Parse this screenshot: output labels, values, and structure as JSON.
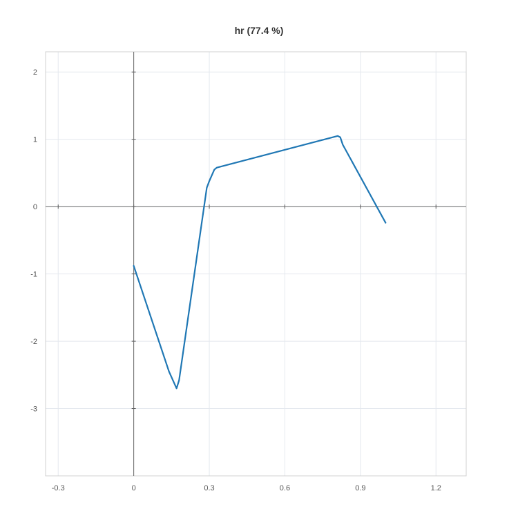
{
  "chart_data": {
    "type": "line",
    "title": "hr (77.4 %)",
    "xlabel": "",
    "ylabel": "",
    "xlim": [
      -0.35,
      1.32
    ],
    "ylim": [
      -4.0,
      2.3
    ],
    "x_ticks": [
      -0.3,
      0,
      0.3,
      0.6,
      0.9,
      1.2
    ],
    "x_tick_labels": [
      "-0.3",
      "0",
      "0.3",
      "0.6",
      "0.9",
      "1.2"
    ],
    "y_ticks": [
      2,
      1,
      0,
      -1,
      -2,
      -3
    ],
    "y_tick_labels": [
      "2",
      "1",
      "0",
      "-1",
      "-2",
      "-3"
    ],
    "grid": true,
    "line_color": "#1f77b4",
    "series": [
      {
        "x": [
          0.0,
          0.14,
          0.17,
          0.18,
          0.29,
          0.3,
          0.32,
          0.33,
          0.81,
          0.82,
          0.83,
          1.0
        ],
        "y": [
          -0.88,
          -2.45,
          -2.7,
          -2.58,
          0.28,
          0.38,
          0.55,
          0.58,
          1.05,
          1.03,
          0.92,
          -0.24
        ]
      }
    ]
  }
}
